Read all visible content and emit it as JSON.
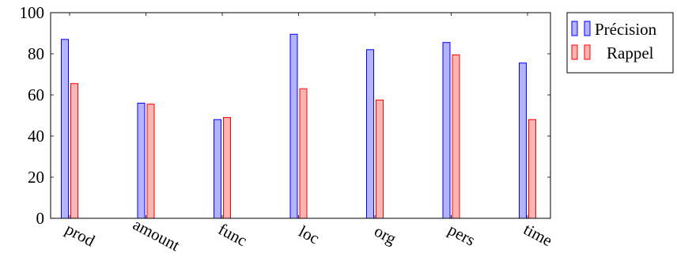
{
  "chart_data": {
    "type": "bar",
    "categories": [
      "prod",
      "amount",
      "func",
      "loc",
      "org",
      "pers",
      "time"
    ],
    "series": [
      {
        "name": "Précision",
        "values": [
          87,
          56,
          48,
          89.5,
          82,
          85.5,
          75.5
        ],
        "color": "#b3b3ff",
        "stroke": "#0000ff"
      },
      {
        "name": "Rappel",
        "values": [
          65.5,
          55.5,
          49,
          63,
          57.5,
          79.5,
          48
        ],
        "color": "#ffb3b3",
        "stroke": "#ff0000"
      }
    ],
    "ylim": [
      0,
      100
    ],
    "yticks": [
      0,
      20,
      40,
      60,
      80,
      100
    ],
    "xlabel": "",
    "ylabel": "",
    "title": "",
    "grid": false,
    "legend": "outside-top-right"
  }
}
